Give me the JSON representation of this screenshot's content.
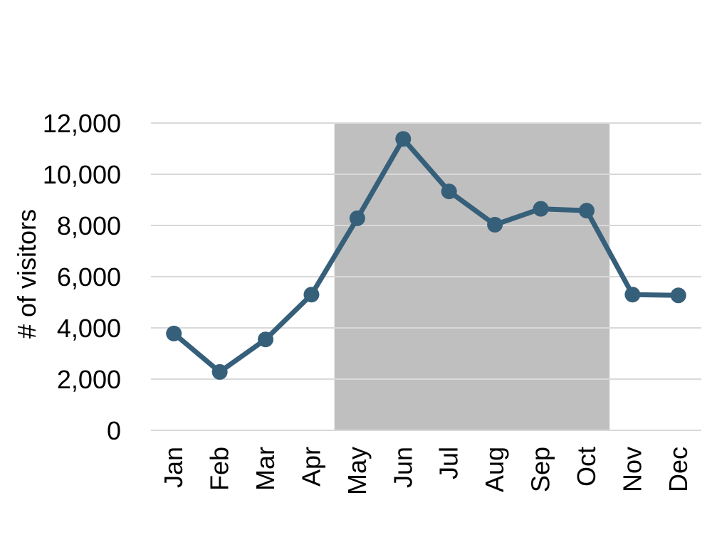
{
  "chart_data": {
    "type": "line",
    "title": "",
    "xlabel": "",
    "ylabel": "# of visitors",
    "categories": [
      "Jan",
      "Feb",
      "Mar",
      "Apr",
      "May",
      "Jun",
      "Jul",
      "Aug",
      "Sep",
      "Oct",
      "Nov",
      "Dec"
    ],
    "series": [
      {
        "values": [
          3780,
          2280,
          3550,
          5300,
          8280,
          11380,
          9330,
          8030,
          8650,
          8580,
          5300,
          5270
        ]
      }
    ],
    "ylim": [
      0,
      12000
    ],
    "yticks": [
      0,
      2000,
      4000,
      6000,
      8000,
      10000,
      12000
    ],
    "ytick_labels": [
      "0",
      "2,000",
      "4,000",
      "6,000",
      "8,000",
      "10,000",
      "12,000"
    ],
    "grid": true,
    "legend": "none",
    "highlight_range": {
      "from": "May",
      "to": "Oct",
      "color": "#bfbfbf"
    },
    "colors": {
      "line": "#365f7a",
      "grid": "#d9d9d9",
      "axis": "#d9d9d9"
    }
  }
}
